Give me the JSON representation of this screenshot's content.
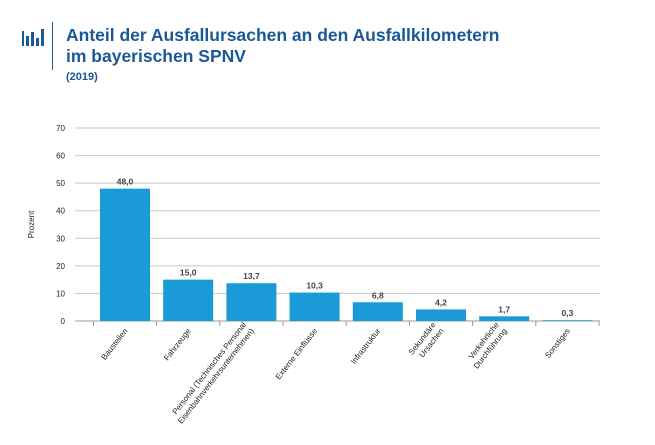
{
  "header": {
    "title_line1": "Anteil der Ausfallursachen an den Ausfallkilometern",
    "title_line2": "im bayerischen SPNV",
    "subtitle": "(2019)",
    "icon": "bar-chart-icon"
  },
  "colors": {
    "bar": "#1a9ad6",
    "title": "#1a5896",
    "grid": "#c8c8c8"
  },
  "chart_data": {
    "type": "bar",
    "title": "Anteil der Ausfallursachen an den Ausfallkilometern im bayerischen SPNV",
    "subtitle": "(2019)",
    "xlabel": "",
    "ylabel": "Prozent",
    "ylim": [
      0,
      70
    ],
    "yticks": [
      0,
      10,
      20,
      30,
      40,
      50,
      60,
      70
    ],
    "grid": true,
    "categories": [
      [
        "Baustellen"
      ],
      [
        "Fahrzeuge"
      ],
      [
        "Personal (Technisches Personal",
        "Eisenbahnverkehrsunternehmen)"
      ],
      [
        "Externe Einflüsse"
      ],
      [
        "Infrastruktur"
      ],
      [
        "Sekundäre",
        "Ursachen"
      ],
      [
        "Verkehrliche",
        "Durchführung"
      ],
      [
        "Sonstiges"
      ]
    ],
    "values": [
      48.0,
      15.0,
      13.7,
      10.3,
      6.8,
      4.2,
      1.7,
      0.3
    ],
    "value_labels": [
      "48,0",
      "15,0",
      "13,7",
      "10,3",
      "6,8",
      "4,2",
      "1,7",
      "0,3"
    ]
  }
}
